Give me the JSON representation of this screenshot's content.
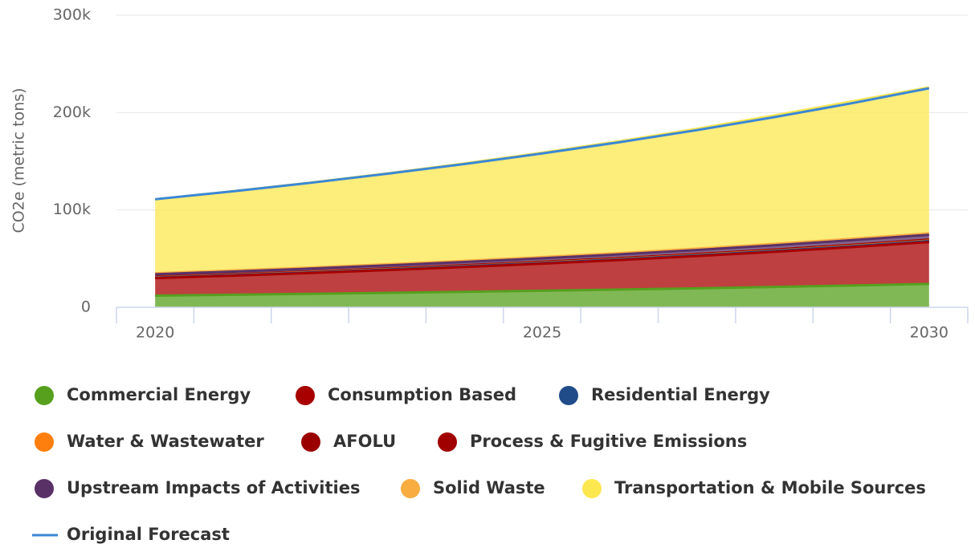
{
  "chart_data": {
    "type": "stacked_area",
    "y_axis_label": "CO2e (metric tons)",
    "categories": [
      "2020",
      null,
      null,
      null,
      null,
      "2025",
      null,
      null,
      null,
      null,
      "2030"
    ],
    "ylim": [
      0,
      300000
    ],
    "yticks": [
      {
        "value": 0,
        "label": "0"
      },
      {
        "value": 100000,
        "label": "100k"
      },
      {
        "value": 200000,
        "label": "200k"
      },
      {
        "value": 300000,
        "label": "300k"
      }
    ],
    "grid": true,
    "legend": "bottom",
    "series": [
      {
        "name": "Commercial Energy",
        "color": "#56a01e",
        "values": [
          12000,
          12900,
          13800,
          14800,
          15900,
          17000,
          18200,
          19500,
          20900,
          22400,
          24000
        ]
      },
      {
        "name": "Consumption Based",
        "color": "#a80000",
        "values": [
          18000,
          19600,
          21400,
          23400,
          25500,
          27800,
          30300,
          33100,
          36100,
          39400,
          43000
        ]
      },
      {
        "name": "Residential Energy",
        "color": "#214c8a",
        "values": [
          500,
          550,
          600,
          650,
          700,
          750,
          800,
          850,
          900,
          950,
          1000
        ]
      },
      {
        "name": "Water & Wastewater",
        "color": "#ff7f0e",
        "values": [
          300,
          320,
          340,
          360,
          380,
          400,
          420,
          440,
          460,
          480,
          500
        ]
      },
      {
        "name": "AFOLU",
        "color": "#9b0000",
        "values": [
          300,
          320,
          340,
          360,
          380,
          400,
          420,
          440,
          460,
          480,
          500
        ]
      },
      {
        "name": "Process & Fugitive Emissions",
        "color": "#a00000",
        "values": [
          300,
          320,
          340,
          360,
          380,
          400,
          420,
          440,
          460,
          480,
          500
        ]
      },
      {
        "name": "Upstream Impacts of Activities",
        "color": "#5a3167",
        "values": [
          2500,
          2700,
          2900,
          3100,
          3300,
          3600,
          3800,
          4100,
          4400,
          4700,
          5000
        ]
      },
      {
        "name": "Solid Waste",
        "color": "#f9ad40",
        "values": [
          1000,
          1050,
          1100,
          1150,
          1200,
          1250,
          1300,
          1350,
          1400,
          1450,
          1500
        ]
      },
      {
        "name": "Transportation & Mobile Sources",
        "color": "#fce74f",
        "values": [
          76000,
          81400,
          87200,
          93400,
          100100,
          107300,
          115000,
          123200,
          132000,
          141100,
          150000
        ]
      }
    ],
    "forecast": {
      "name": "Original Forecast",
      "color": "#3a87d6",
      "values": [
        111000,
        119100,
        127800,
        137200,
        147200,
        158000,
        169600,
        182000,
        195300,
        209600,
        225000
      ]
    }
  }
}
